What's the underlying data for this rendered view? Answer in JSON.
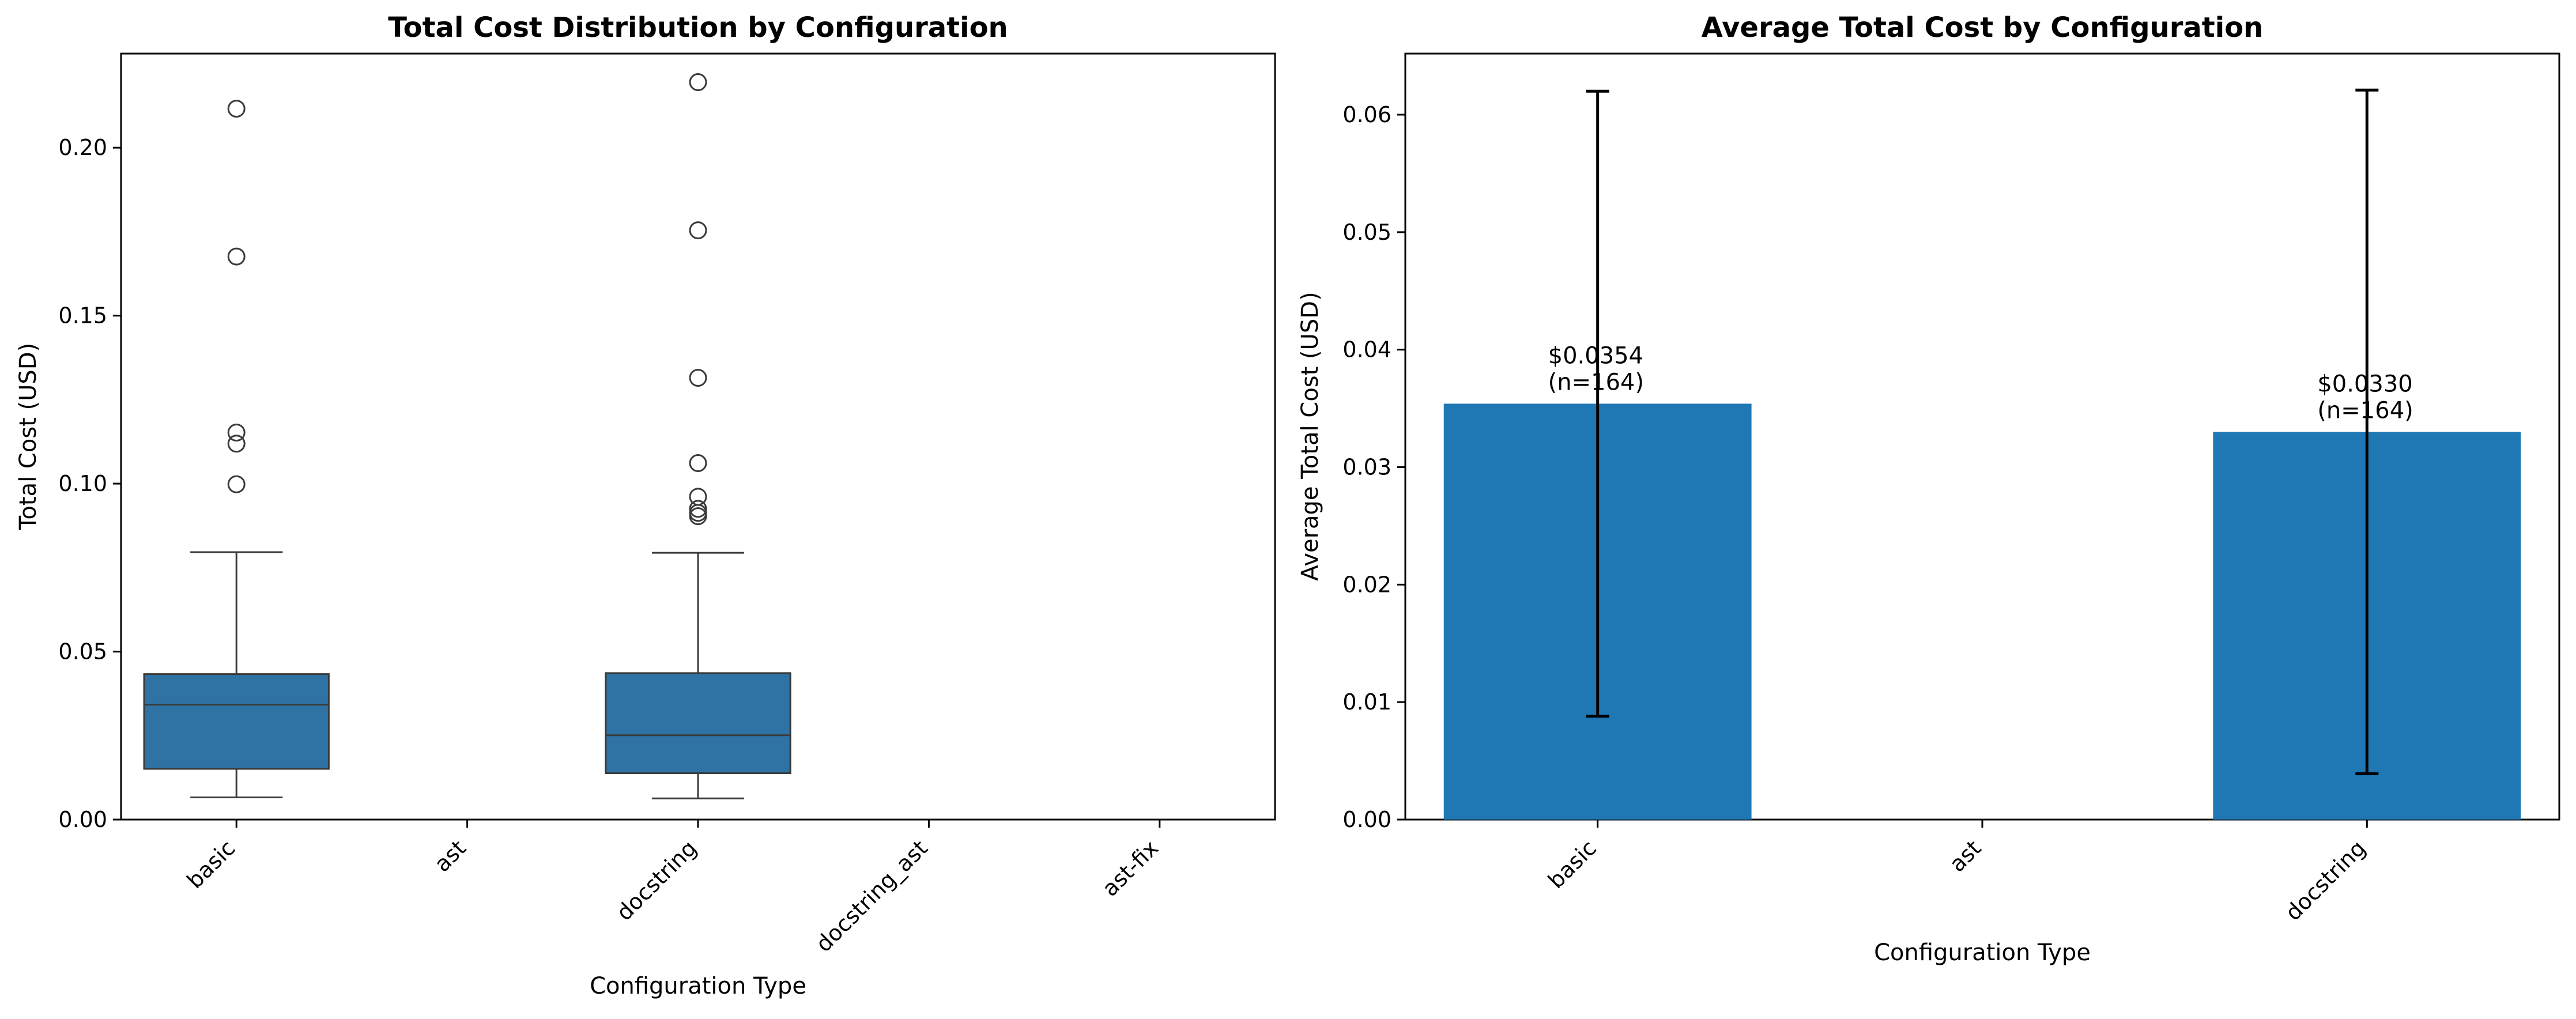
{
  "colors": {
    "box_fill": "#2e73a4",
    "bar_fill": "#1f77b4",
    "line": "#3a3a3a",
    "errorbar": "#000000"
  },
  "chart_data": [
    {
      "type": "box",
      "title": "Total Cost Distribution by Configuration",
      "xlabel": "Configuration Type",
      "ylabel": "Total Cost (USD)",
      "ylim": [
        0.0,
        0.228
      ],
      "yticks": [
        0.0,
        0.05,
        0.1,
        0.15,
        0.2
      ],
      "ytick_labels": [
        "0.00",
        "0.05",
        "0.10",
        "0.15",
        "0.20"
      ],
      "categories": [
        "basic",
        "ast",
        "docstring",
        "docstring_ast",
        "ast-fix"
      ],
      "boxes": [
        {
          "category": "basic",
          "whisker_low": 0.0066,
          "q1": 0.0151,
          "median": 0.0342,
          "q3": 0.0433,
          "whisker_high": 0.0796,
          "outliers": [
            0.0998,
            0.1119,
            0.1152,
            0.1676,
            0.2116
          ]
        },
        {
          "category": "ast"
        },
        {
          "category": "docstring",
          "whisker_low": 0.0063,
          "q1": 0.0138,
          "median": 0.0251,
          "q3": 0.0436,
          "whisker_high": 0.0794,
          "outliers": [
            0.0903,
            0.0913,
            0.0925,
            0.0961,
            0.1061,
            0.1315,
            0.1754,
            0.2195
          ]
        },
        {
          "category": "docstring_ast"
        },
        {
          "category": "ast-fix"
        }
      ],
      "grid": false
    },
    {
      "type": "bar",
      "title": "Average Total Cost by Configuration",
      "xlabel": "Configuration Type",
      "ylabel": "Average Total Cost (USD)",
      "ylim": [
        0.0,
        0.0652
      ],
      "yticks": [
        0.0,
        0.01,
        0.02,
        0.03,
        0.04,
        0.05,
        0.06
      ],
      "ytick_labels": [
        "0.00",
        "0.01",
        "0.02",
        "0.03",
        "0.04",
        "0.05",
        "0.06"
      ],
      "categories": [
        "basic",
        "ast",
        "docstring"
      ],
      "values": [
        0.0354,
        null,
        0.033
      ],
      "error_low": [
        0.0088,
        null,
        0.0039
      ],
      "error_high": [
        0.062,
        null,
        0.0621
      ],
      "bar_labels": [
        {
          "category": "basic",
          "line1": "$0.0354",
          "line2": "(n=164)"
        },
        {
          "category": "docstring",
          "line1": "$0.0330",
          "line2": "(n=164)"
        }
      ],
      "grid": false
    }
  ]
}
